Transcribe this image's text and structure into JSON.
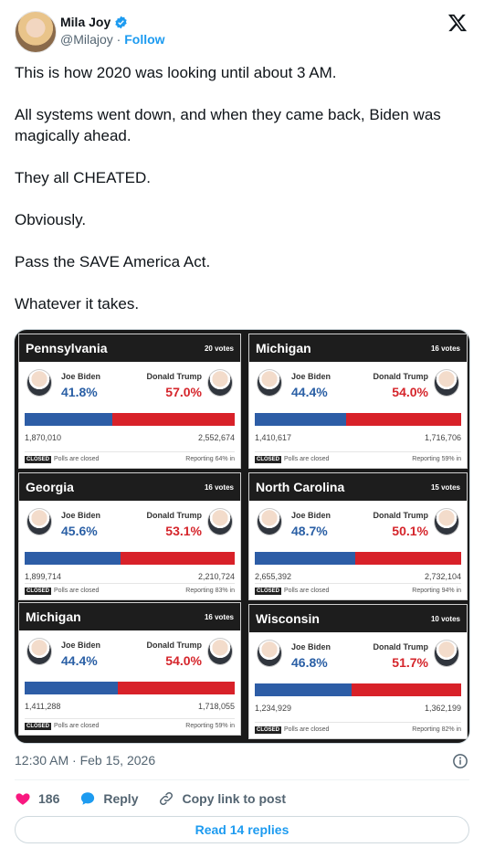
{
  "author": {
    "name": "Mila Joy",
    "handle": "@Milajoy",
    "separator": " · ",
    "follow_label": "Follow",
    "verified_color": "#1d9bf0"
  },
  "tweet": {
    "paragraphs": [
      "This is how 2020 was looking until about 3 AM.",
      "All systems went down, and when they came back, Biden was magically ahead.",
      "They all CHEATED.",
      "Obviously.",
      "Pass the SAVE America Act.",
      "Whatever it takes."
    ],
    "timestamp": "12:30 AM · Feb 15, 2026"
  },
  "results": [
    {
      "state": "Pennsylvania",
      "votes": "20 votes",
      "left_name": "Joe Biden",
      "left_pct": "41.8%",
      "right_name": "Donald Trump",
      "right_pct": "57.0%",
      "left_share": 0.418,
      "left_count": "1,870,010",
      "right_count": "2,552,674",
      "closed": "CLOSED",
      "status": "Polls are closed",
      "reporting": "Reporting 64% in"
    },
    {
      "state": "Michigan",
      "votes": "16 votes",
      "left_name": "Joe Biden",
      "left_pct": "44.4%",
      "right_name": "Donald Trump",
      "right_pct": "54.0%",
      "left_share": 0.444,
      "left_count": "1,410,617",
      "right_count": "1,716,706",
      "closed": "CLOSED",
      "status": "Polls are closed",
      "reporting": "Reporting 59% in"
    },
    {
      "state": "Georgia",
      "votes": "16 votes",
      "left_name": "Joe Biden",
      "left_pct": "45.6%",
      "right_name": "Donald Trump",
      "right_pct": "53.1%",
      "left_share": 0.456,
      "left_count": "1,899,714",
      "right_count": "2,210,724",
      "closed": "CLOSED",
      "status": "Polls are closed",
      "reporting": "Reporting 83% in"
    },
    {
      "state": "North Carolina",
      "votes": "15 votes",
      "left_name": "Joe Biden",
      "left_pct": "48.7%",
      "right_name": "Donald Trump",
      "right_pct": "50.1%",
      "left_share": 0.487,
      "left_count": "2,655,392",
      "right_count": "2,732,104",
      "closed": "CLOSED",
      "status": "Polls are closed",
      "reporting": "Reporting 94% in"
    },
    {
      "state": "Michigan",
      "votes": "16 votes",
      "left_name": "Joe Biden",
      "left_pct": "44.4%",
      "right_name": "Donald Trump",
      "right_pct": "54.0%",
      "left_share": 0.444,
      "left_count": "1,411,288",
      "right_count": "1,718,055",
      "closed": "CLOSED",
      "status": "Polls are closed",
      "reporting": "Reporting 59% in"
    },
    {
      "state": "Wisconsin",
      "votes": "10 votes",
      "left_name": "Joe Biden",
      "left_pct": "46.8%",
      "right_name": "Donald Trump",
      "right_pct": "51.7%",
      "left_share": 0.468,
      "left_count": "1,234,929",
      "right_count": "1,362,199",
      "closed": "CLOSED",
      "status": "Polls are closed",
      "reporting": "Reporting 82% in"
    }
  ],
  "actions": {
    "likes": "186",
    "reply_label": "Reply",
    "copy_label": "Copy link to post",
    "read_replies_label": "Read 14 replies"
  },
  "colors": {
    "accent": "#1d9bf0",
    "like": "#f91880",
    "biden": "#2d5da6",
    "trump": "#d82129"
  },
  "icons": [
    "verified-badge-icon",
    "x-logo-icon",
    "info-icon",
    "heart-icon",
    "reply-icon",
    "link-icon"
  ]
}
